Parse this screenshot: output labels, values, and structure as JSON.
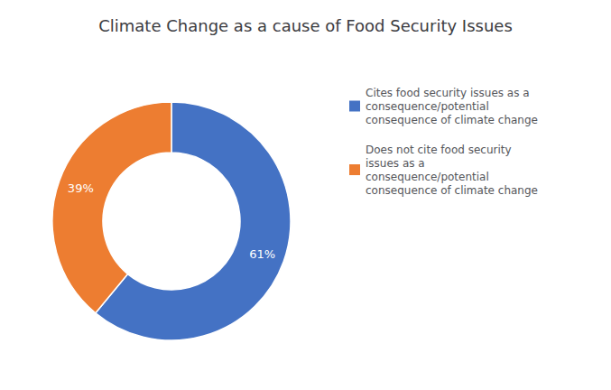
{
  "chart_data": {
    "type": "pie",
    "title": "Climate Change as a cause of Food Security Issues",
    "categories": [
      "Cites food security issues as a\nconsequence/potential\nconsequence of climate change",
      "Does not cite food security\nissues as a\nconsequence/potential\nconsequence of climate change"
    ],
    "values": [
      61,
      39
    ],
    "value_labels": [
      "61%",
      "39%"
    ],
    "colors": [
      "#4472C4",
      "#ED7D31"
    ],
    "data_labels": true,
    "legend": "right"
  }
}
